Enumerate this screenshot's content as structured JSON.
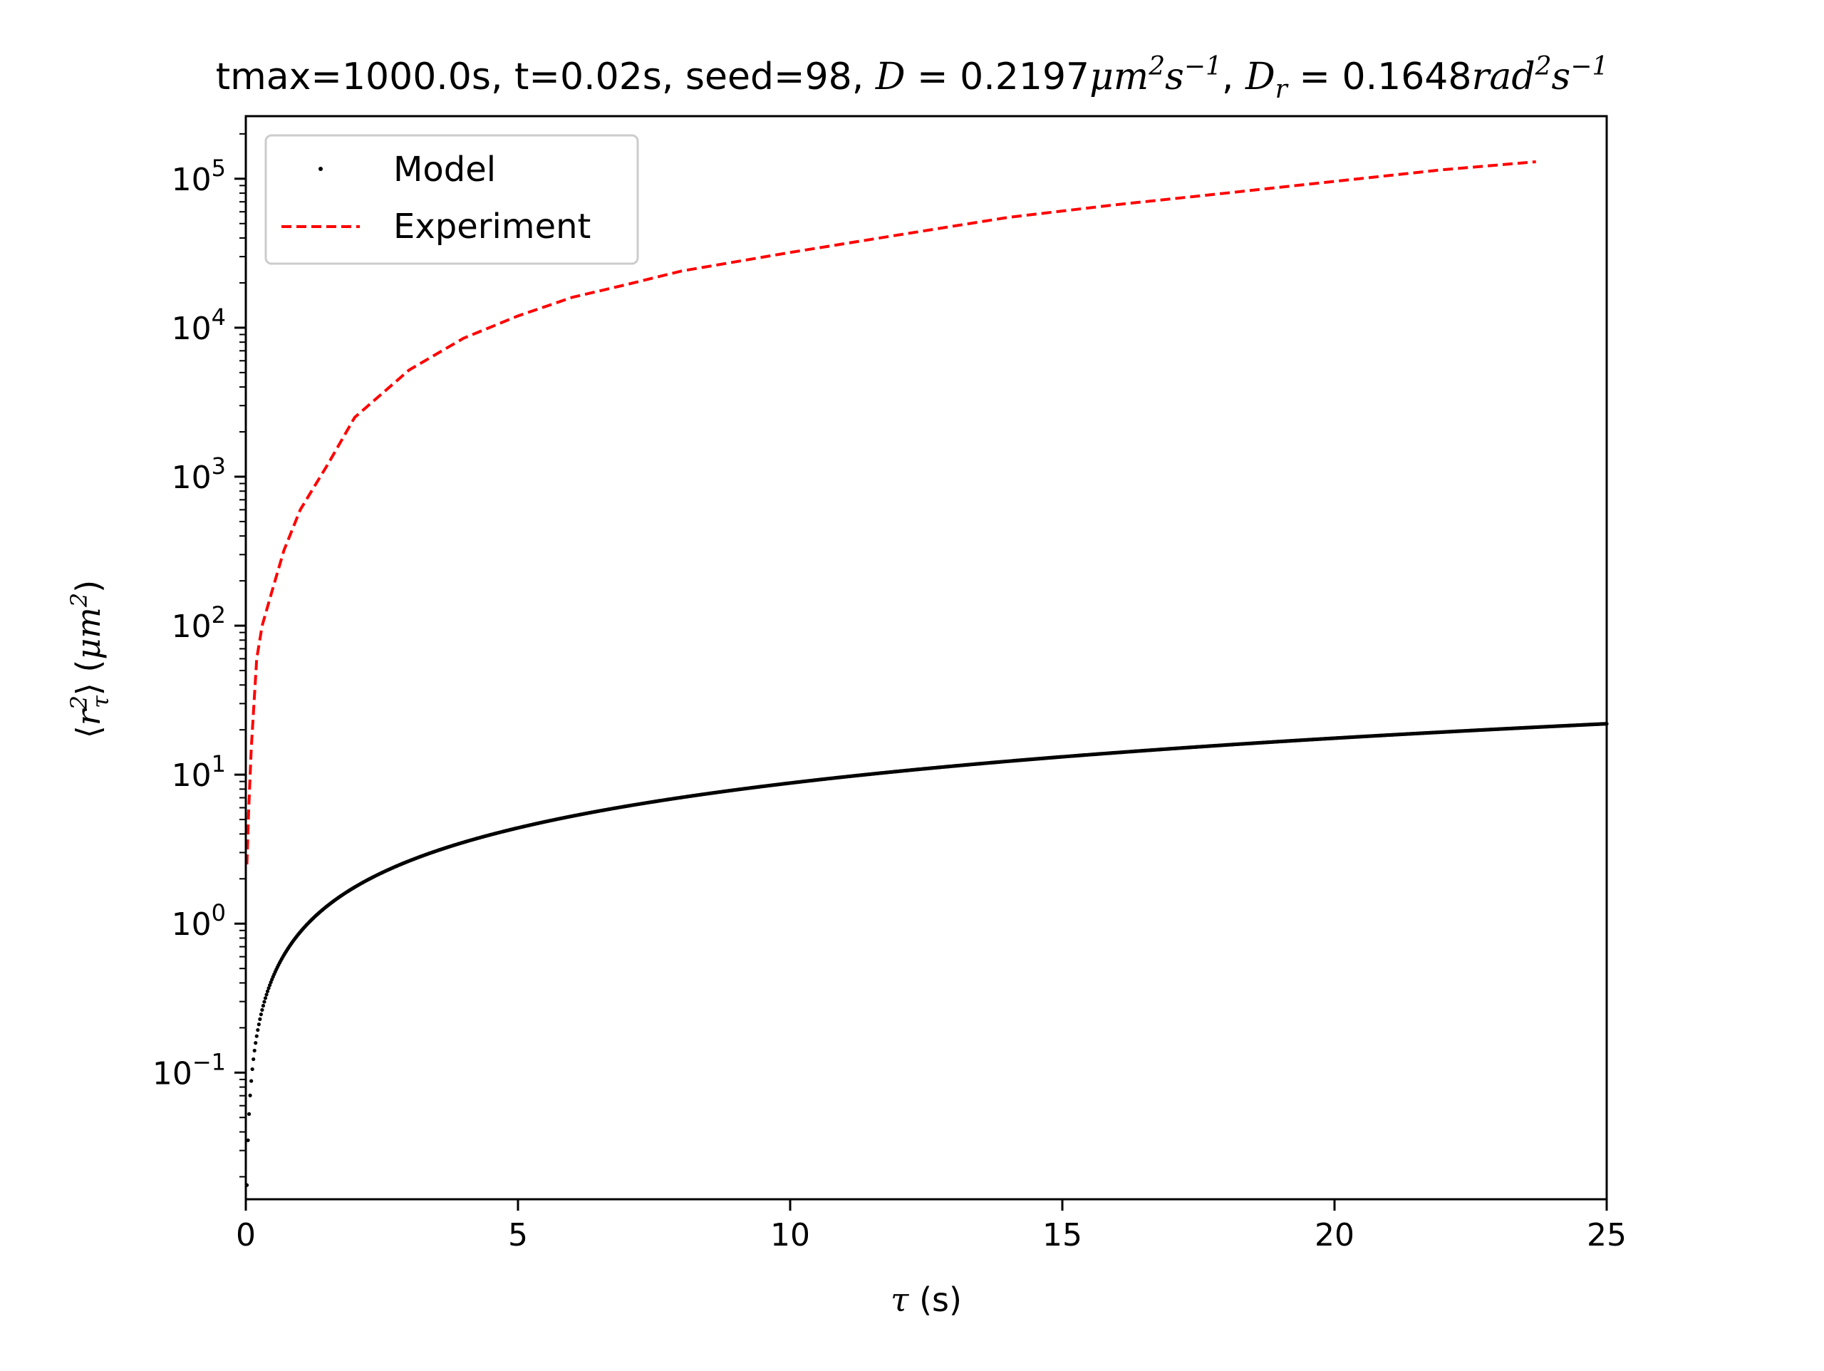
{
  "chart_data": {
    "type": "line",
    "title_parts": {
      "prefix": "tmax=1000.0s, t=0.02s, seed=98, ",
      "D_symbol": "D",
      "D_value": "0.2197",
      "D_unit_base": "μm",
      "D_unit_exp1": "2",
      "D_unit_s": "s",
      "D_unit_exp2": "−1",
      "sep": ", ",
      "Dr_symbol": "D",
      "Dr_sub": "r",
      "Dr_value": "0.1648",
      "Dr_unit_base": "rad",
      "Dr_unit_exp1": "2",
      "Dr_unit_s": "s",
      "Dr_unit_exp2": "−1"
    },
    "xlabel_parts": {
      "symbol": "τ",
      "unit": " (s)"
    },
    "ylabel_parts": {
      "open": "⟨",
      "var": "r",
      "sup": "2",
      "sub": "τ",
      "close": "⟩",
      "unit_open": " (",
      "unit_var": "μm",
      "unit_sup": "2",
      "unit_close": ")"
    },
    "xlim": [
      0,
      25
    ],
    "ylim_log10": [
      -1.85,
      5.42
    ],
    "yscale": "log",
    "grid": false,
    "legend_position": "upper-left",
    "x_ticks": [
      {
        "value": 0,
        "label": "0"
      },
      {
        "value": 5,
        "label": "5"
      },
      {
        "value": 10,
        "label": "10"
      },
      {
        "value": 15,
        "label": "15"
      },
      {
        "value": 20,
        "label": "20"
      },
      {
        "value": 25,
        "label": "25"
      }
    ],
    "y_ticks": [
      {
        "exp": -1,
        "base": "10",
        "exp_label": "−1"
      },
      {
        "exp": 0,
        "base": "10",
        "exp_label": "0"
      },
      {
        "exp": 1,
        "base": "10",
        "exp_label": "1"
      },
      {
        "exp": 2,
        "base": "10",
        "exp_label": "2"
      },
      {
        "exp": 3,
        "base": "10",
        "exp_label": "3"
      },
      {
        "exp": 4,
        "base": "10",
        "exp_label": "4"
      },
      {
        "exp": 5,
        "base": "10",
        "exp_label": "5"
      }
    ],
    "series": [
      {
        "name": "Model",
        "style": "dots",
        "color": "#000000",
        "model": {
          "D": 0.2197,
          "dt": 0.02,
          "factor": 4,
          "x_max": 25
        }
      },
      {
        "name": "Experiment",
        "style": "dashed",
        "color": "#ff0000",
        "x": [
          0.02,
          0.05,
          0.1,
          0.2,
          0.3,
          0.5,
          0.7,
          1.0,
          1.5,
          2.0,
          3.0,
          4.0,
          5.0,
          6.0,
          7.0,
          8.0,
          10.0,
          12.0,
          14.0,
          16.0,
          18.0,
          20.0,
          22.0,
          23.7
        ],
        "y": [
          2.5,
          5.5,
          15,
          60,
          100,
          180,
          320,
          600,
          1200,
          2500,
          5200,
          8500,
          12000,
          16000,
          19500,
          24000,
          32000,
          42000,
          55000,
          67000,
          80000,
          96000,
          115000,
          130000
        ]
      }
    ]
  }
}
